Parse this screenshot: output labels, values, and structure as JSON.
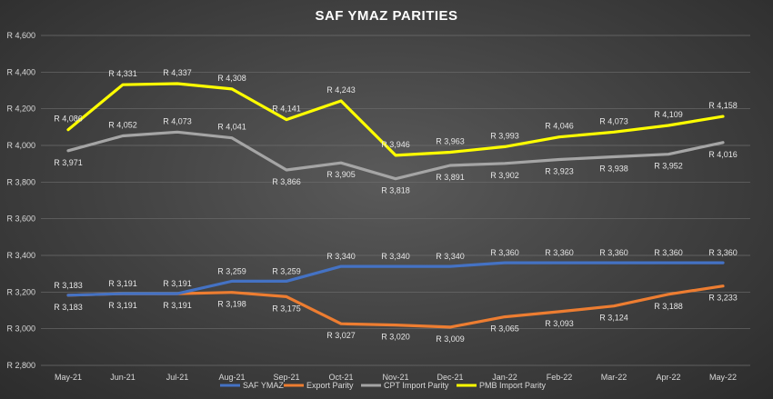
{
  "chart_data": {
    "type": "line",
    "title": "SAF YMAZ PARITIES",
    "categories": [
      "May-21",
      "Jun-21",
      "Jul-21",
      "Aug-21",
      "Sep-21",
      "Oct-21",
      "Nov-21",
      "Dec-21",
      "Jan-22",
      "Feb-22",
      "Mar-22",
      "Apr-22",
      "May-22"
    ],
    "ylim": [
      2800,
      4600
    ],
    "yticks": [
      2800,
      3000,
      3200,
      3400,
      3600,
      3800,
      4000,
      4200,
      4400,
      4600
    ],
    "ytick_labels": [
      "R 2,800",
      "R 3,000",
      "R 3,200",
      "R 3,400",
      "R 3,600",
      "R 3,800",
      "R 4,000",
      "R 4,200",
      "R 4,400",
      "R 4,600"
    ],
    "grid": true,
    "legend_position": "bottom",
    "series": [
      {
        "name": "SAF YMAZ",
        "color": "#4472c4",
        "values": [
          3183,
          3191,
          3191,
          3259,
          3259,
          3340,
          3340,
          3340,
          3360,
          3360,
          3360,
          3360,
          3360
        ],
        "labels": [
          "R 3,183",
          "R 3,191",
          "R 3,191",
          "R 3,259",
          "R 3,259",
          "R 3,340",
          "R 3,340",
          "R 3,340",
          "R 3,360",
          "R 3,360",
          "R 3,360",
          "R 3,360",
          "R 3,360"
        ]
      },
      {
        "name": "Export Parity",
        "color": "#ed7d31",
        "values": [
          3183,
          3191,
          3191,
          3198,
          3175,
          3027,
          3020,
          3009,
          3065,
          3093,
          3124,
          3188,
          3233
        ],
        "labels": [
          "R 3,183",
          "R 3,191",
          "R 3,191",
          "R 3,198",
          "R 3,175",
          "R 3,027",
          "R 3,020",
          "R 3,009",
          "R 3,065",
          "R 3,093",
          "R 3,124",
          "R 3,188",
          "R 3,233"
        ]
      },
      {
        "name": "CPT Import Parity",
        "color": "#a5a5a5",
        "values": [
          3971,
          4052,
          4073,
          4041,
          3866,
          3905,
          3818,
          3891,
          3902,
          3923,
          3938,
          3952,
          4016
        ],
        "labels": [
          "R 3,971",
          "R 4,052",
          "R 4,073",
          "R 4,041",
          "R 3,866",
          "R 3,905",
          "R 3,818",
          "R 3,891",
          "R 3,902",
          "R 3,923",
          "R 3,938",
          "R 3,952",
          "R 4,016"
        ]
      },
      {
        "name": "PMB Import Parity",
        "color": "#ffff00",
        "values": [
          4086,
          4331,
          4337,
          4308,
          4141,
          4243,
          3946,
          3963,
          3993,
          4046,
          4073,
          4109,
          4158
        ],
        "labels": [
          "R 4,086",
          "R 4,331",
          "R 4,337",
          "R 4,308",
          "R 4,141",
          "R 4,243",
          "R 3,946",
          "R 3,963",
          "R 3,993",
          "R 4,046",
          "R 4,073",
          "R 4,109",
          "R 4,158"
        ]
      }
    ]
  }
}
